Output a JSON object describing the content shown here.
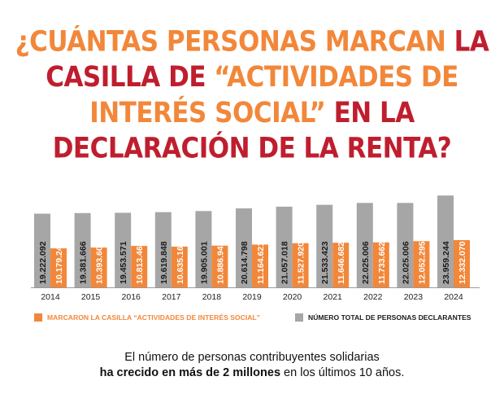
{
  "title": {
    "line1_orange": "¿CUÁNTAS PERSONAS MARCAN ",
    "line1_red": "LA",
    "line2_red_a": "CASILLA DE ",
    "line2_orange": "“ACTIVIDADES DE",
    "line3_orange": "INTERÉS SOCIAL” ",
    "line3_red": "EN LA",
    "line4_red": "DECLARACIÓN DE LA RENTA?"
  },
  "legend": {
    "orange_label": "MARCARON LA CASILLA “ACTIVIDADES DE INTERÉS SOCIAL”",
    "gray_label": "NÚMERO TOTAL DE PERSONAS DECLARANTES"
  },
  "footer": {
    "line1": "El número de personas contribuyentes solidarias",
    "line2_bold": "ha crecido en más de 2 millones",
    "line2_rest": " en los últimos 10 años."
  },
  "colors": {
    "orange": "#f2873a",
    "red": "#bf1e2e",
    "gray": "#a6a6a6"
  },
  "chart_data": {
    "type": "bar",
    "categories": [
      "2014",
      "2015",
      "2016",
      "2017",
      "2018",
      "2019",
      "2020",
      "2021",
      "2022",
      "2023",
      "2024"
    ],
    "series": [
      {
        "name": "NÚMERO TOTAL DE PERSONAS DECLARANTES",
        "color": "#a6a6a6",
        "values": [
          19222092,
          19381666,
          19453571,
          19619848,
          19905001,
          20614798,
          21057018,
          21533423,
          22025006,
          22025006,
          23959244
        ],
        "labels": [
          "19.222.092",
          "19.381.666",
          "19.453.571",
          "19.619.848",
          "19.905.001",
          "20.614.798",
          "21.057.018",
          "21.533.423",
          "22.025.006",
          "22.025.006",
          "23.959.244"
        ]
      },
      {
        "name": "MARCARON LA CASILLA “ACTIVIDADES DE INTERÉS SOCIAL”",
        "color": "#f2873a",
        "values": [
          10179249,
          10393605,
          10813462,
          10635168,
          10886942,
          11164621,
          11527920,
          11646682,
          11733662,
          12052295,
          12332070
        ],
        "labels": [
          "10.179.249",
          "10.393.605",
          "10.813.462",
          "10.635.168",
          "10.886.942",
          "11.164.621",
          "11.527.920",
          "11.646.682",
          "11.733.662",
          "12.052.295",
          "12.332.070"
        ]
      }
    ],
    "xlabel": "",
    "ylabel": ""
  }
}
